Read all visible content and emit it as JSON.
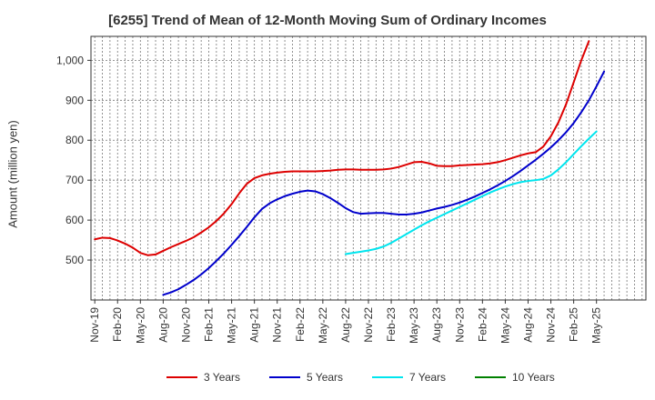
{
  "chart_data": {
    "type": "line",
    "title": "[6255]  Trend of Mean of 12-Month Moving Sum of Ordinary Incomes",
    "xlabel": "",
    "ylabel": "Amount (million yen)",
    "ylim": [
      400,
      1060
    ],
    "yticks": [
      500,
      600,
      700,
      800,
      900,
      1000
    ],
    "ytick_labels": [
      "500",
      "600",
      "700",
      "800",
      "900",
      "1,000"
    ],
    "x_start": "Nov-19",
    "x_months": 73,
    "xtick_labels": [
      "Nov-19",
      "Feb-20",
      "May-20",
      "Aug-20",
      "Nov-20",
      "Feb-21",
      "May-21",
      "Aug-21",
      "Nov-21",
      "Feb-22",
      "May-22",
      "Aug-22",
      "Nov-22",
      "Feb-23",
      "May-23",
      "Aug-23",
      "Nov-23",
      "Feb-24",
      "May-24",
      "Aug-24",
      "Nov-24",
      "Feb-25",
      "May-25"
    ],
    "grid": true,
    "legend": "bottom",
    "series": [
      {
        "name": "3 Years",
        "color": "#dd0000",
        "start": 0,
        "values": [
          552,
          556,
          555,
          549,
          541,
          531,
          518,
          512,
          514,
          523,
          532,
          540,
          548,
          557,
          569,
          582,
          598,
          617,
          640,
          667,
          691,
          705,
          712,
          716,
          719,
          721,
          722,
          722,
          722,
          722,
          723,
          724,
          726,
          727,
          727,
          726,
          726,
          726,
          727,
          729,
          733,
          739,
          745,
          746,
          742,
          736,
          735,
          735,
          737,
          738,
          739,
          740,
          742,
          745,
          750,
          756,
          762,
          767,
          770,
          784,
          810,
          845,
          890,
          945,
          1000,
          1048
        ]
      },
      {
        "name": "5 Years",
        "color": "#0000cc",
        "start": 9,
        "values": [
          413,
          419,
          427,
          438,
          450,
          464,
          480,
          498,
          517,
          538,
          560,
          583,
          607,
          628,
          642,
          652,
          660,
          666,
          671,
          674,
          672,
          665,
          655,
          643,
          630,
          620,
          616,
          617,
          618,
          618,
          616,
          614,
          614,
          616,
          619,
          624,
          629,
          633,
          638,
          644,
          651,
          659,
          668,
          677,
          687,
          698,
          710,
          723,
          737,
          751,
          766,
          782,
          800,
          820,
          843,
          870,
          900,
          935,
          972
        ]
      },
      {
        "name": "7 Years",
        "color": "#00e5ee",
        "start": 33,
        "values": [
          515,
          518,
          521,
          524,
          528,
          534,
          543,
          554,
          565,
          576,
          587,
          597,
          606,
          615,
          624,
          633,
          642,
          651,
          660,
          669,
          677,
          684,
          690,
          695,
          698,
          700,
          703,
          712,
          727,
          745,
          765,
          785,
          804,
          822
        ]
      },
      {
        "name": "10 Years",
        "color": "#008000",
        "start": 0,
        "values": []
      }
    ]
  }
}
